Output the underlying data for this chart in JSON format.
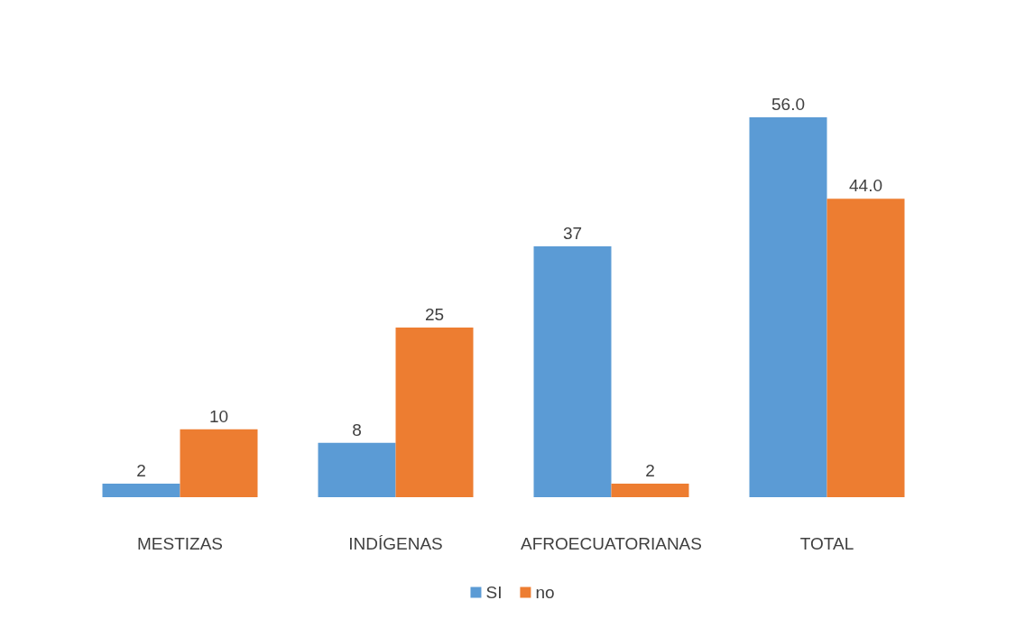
{
  "chart_data": {
    "type": "bar",
    "categories": [
      "MESTIZAS",
      "INDÍGENAS",
      "AFROECUATORIANAS",
      "TOTAL"
    ],
    "series": [
      {
        "name": "SI",
        "color": "#5b9bd5",
        "values": [
          2,
          8,
          37,
          56
        ],
        "value_labels": [
          "2",
          "8",
          "37",
          "56.0"
        ]
      },
      {
        "name": "no",
        "color": "#ed7d31",
        "values": [
          10,
          25,
          2,
          44
        ],
        "value_labels": [
          "10",
          "25",
          "2",
          "44.0"
        ]
      }
    ],
    "legend": "bottom"
  }
}
